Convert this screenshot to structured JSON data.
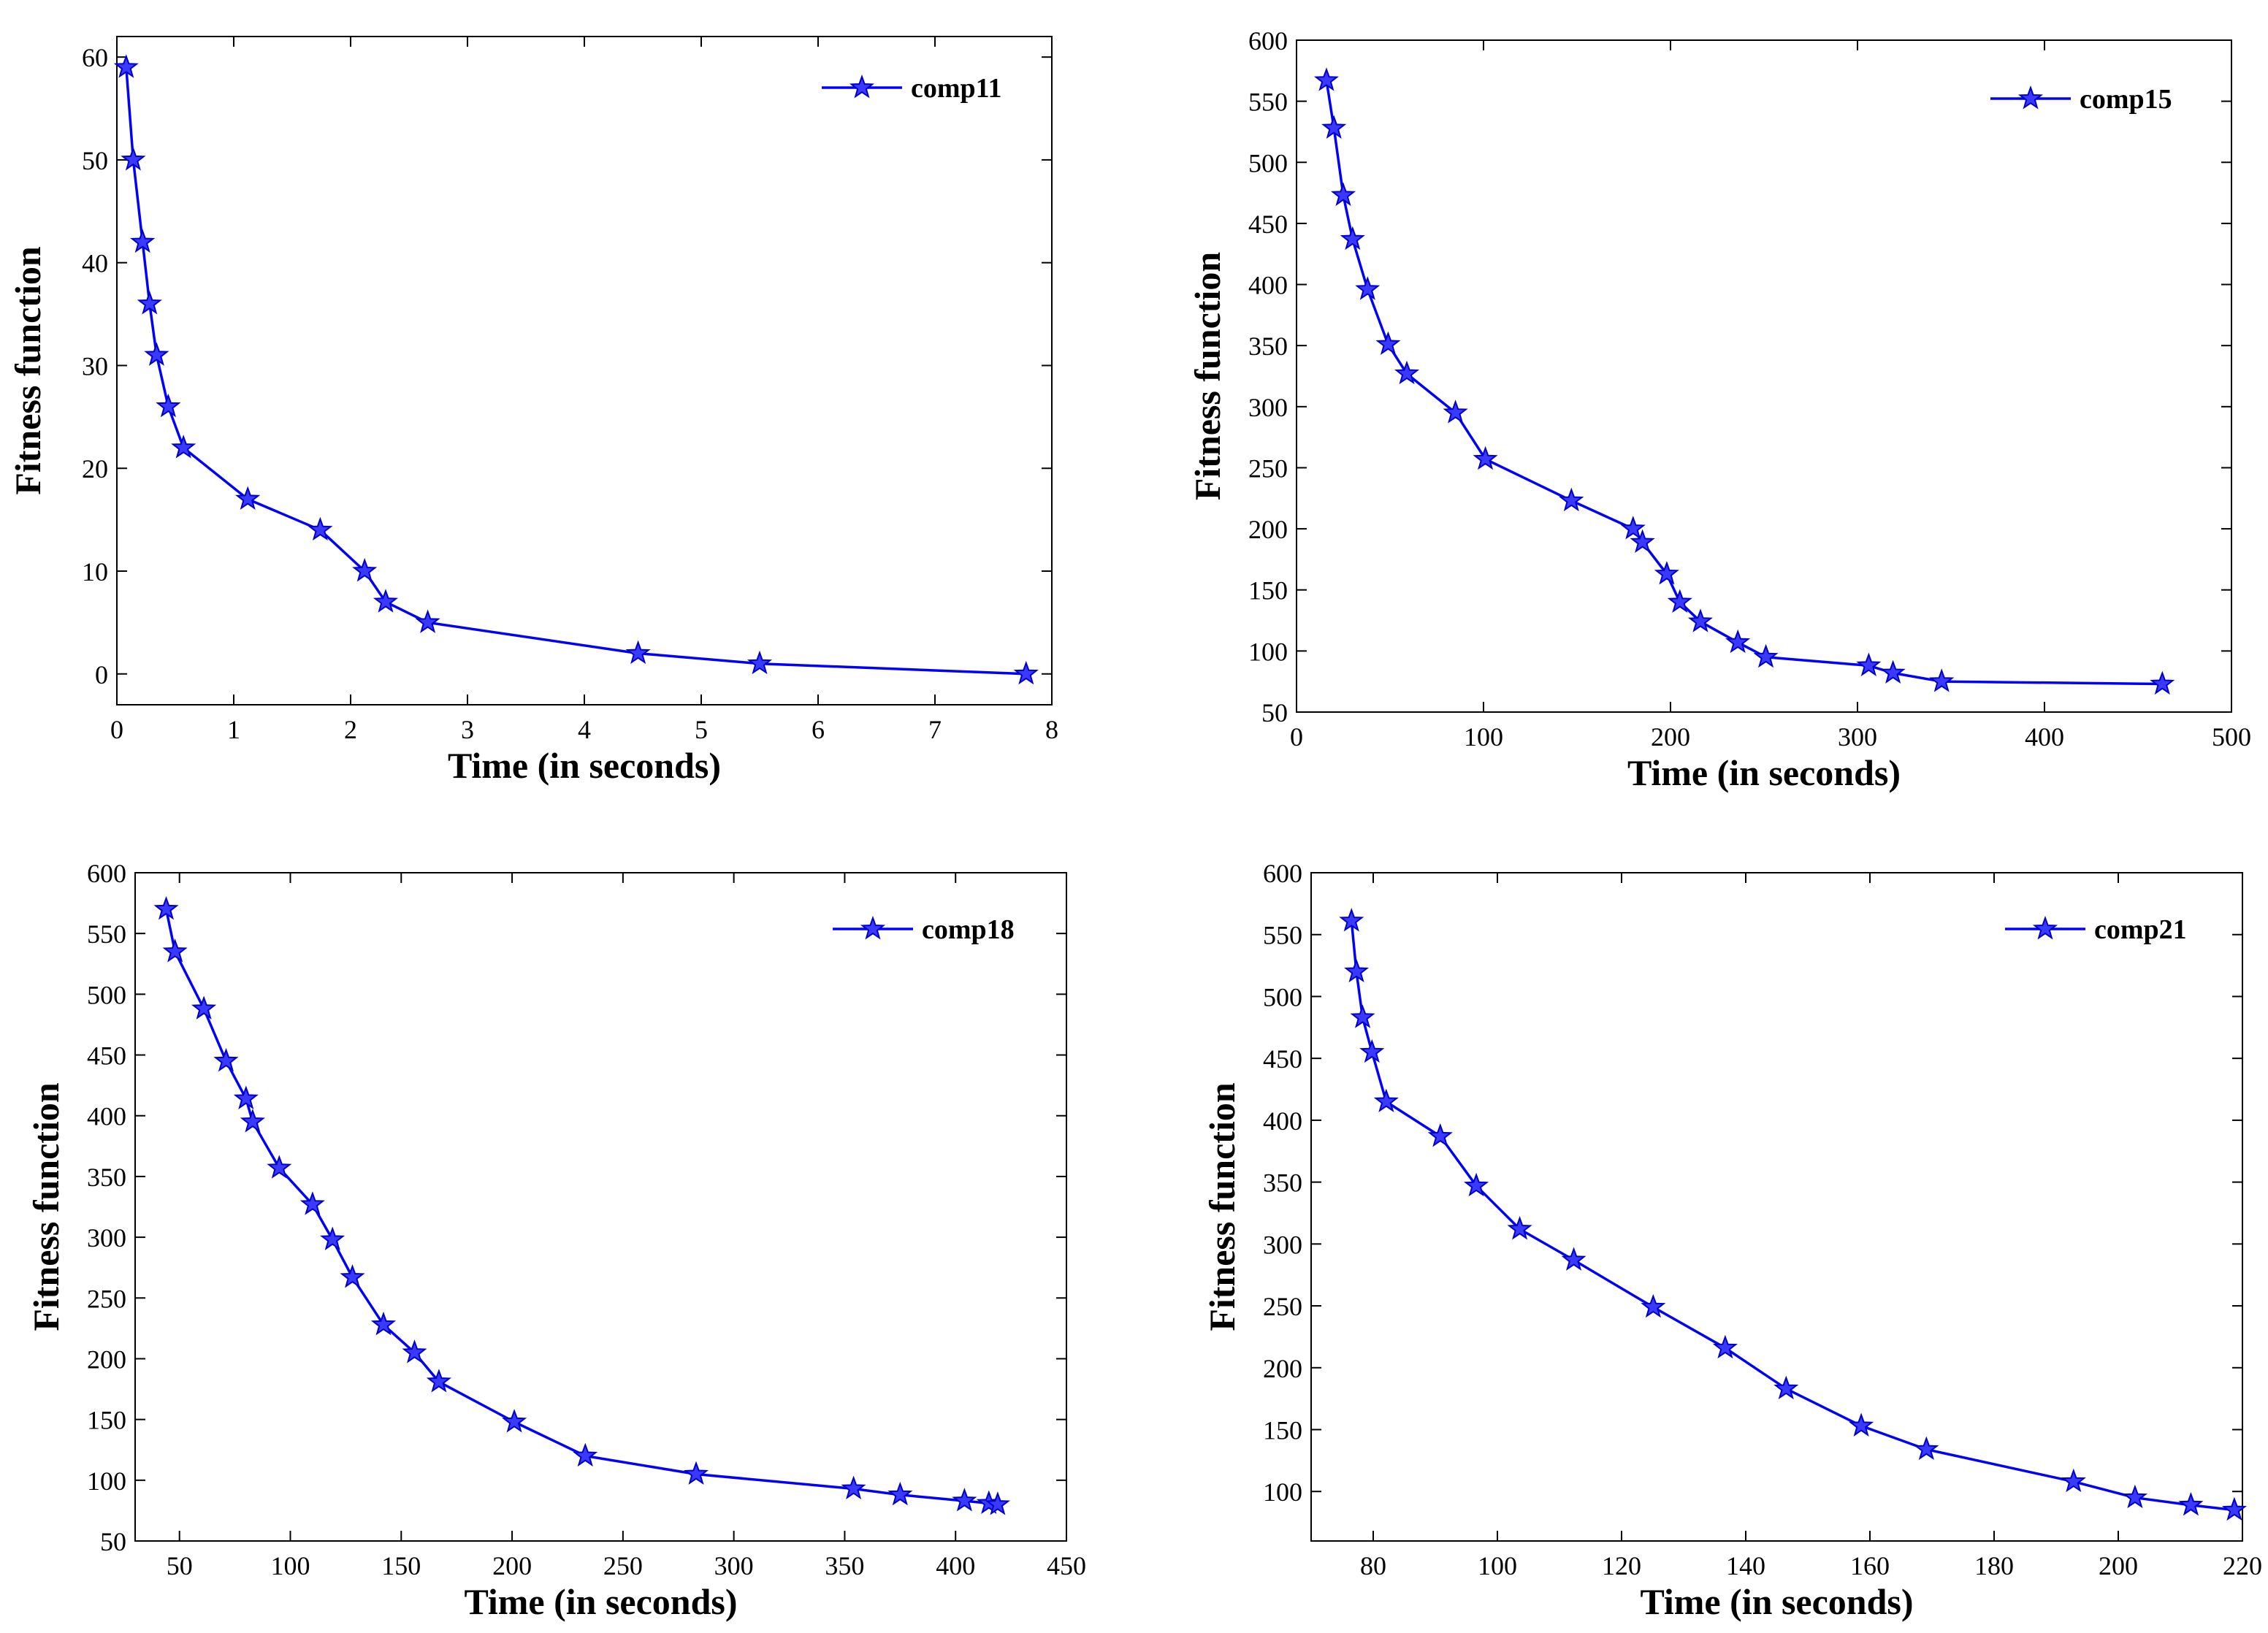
{
  "chart_data": [
    {
      "type": "line",
      "title": "",
      "xlabel": "Time (in seconds)",
      "ylabel": "Fitness function",
      "xlim": [
        0,
        8
      ],
      "ylim": [
        -3,
        62
      ],
      "xticks": [
        0,
        1,
        2,
        3,
        4,
        5,
        6,
        7,
        8
      ],
      "yticks": [
        0,
        10,
        20,
        30,
        40,
        50,
        60
      ],
      "legend_position": "top-right",
      "grid": false,
      "series": [
        {
          "name": "comp11",
          "color": "#0000ff",
          "marker": "star",
          "x": [
            0.08,
            0.14,
            0.22,
            0.28,
            0.34,
            0.44,
            0.57,
            1.12,
            1.74,
            2.12,
            2.3,
            2.66,
            4.46,
            5.5,
            7.78
          ],
          "y": [
            59,
            50,
            42,
            36,
            31,
            26,
            22,
            17,
            14,
            10,
            7,
            5,
            2,
            1,
            0
          ]
        }
      ]
    },
    {
      "type": "line",
      "title": "",
      "xlabel": "Time (in seconds)",
      "ylabel": "Fitness function",
      "xlim": [
        0,
        500
      ],
      "ylim": [
        50,
        600
      ],
      "xticks": [
        0,
        100,
        200,
        300,
        400,
        500
      ],
      "yticks": [
        50,
        100,
        150,
        200,
        250,
        300,
        350,
        400,
        450,
        500,
        550,
        600
      ],
      "legend_position": "top-right",
      "grid": false,
      "series": [
        {
          "name": "comp15",
          "color": "#0000ff",
          "marker": "star",
          "x": [
            16,
            20,
            25,
            30,
            38,
            49,
            59,
            85,
            101,
            147,
            180,
            185,
            198,
            205,
            216,
            236,
            251,
            306,
            319,
            345,
            463
          ],
          "y": [
            567,
            528,
            473,
            437,
            396,
            351,
            327,
            295,
            257,
            223,
            200,
            189,
            163,
            140,
            124,
            107,
            95,
            88,
            82,
            75,
            73
          ]
        }
      ]
    },
    {
      "type": "line",
      "title": "",
      "xlabel": "Time (in seconds)",
      "ylabel": "Fitness function",
      "xlim": [
        30,
        450
      ],
      "ylim": [
        50,
        600
      ],
      "xticks": [
        50,
        100,
        150,
        200,
        250,
        300,
        350,
        400,
        450
      ],
      "yticks": [
        50,
        100,
        150,
        200,
        250,
        300,
        350,
        400,
        450,
        500,
        550,
        600
      ],
      "legend_position": "top-right",
      "grid": false,
      "series": [
        {
          "name": "comp18",
          "color": "#0000ff",
          "marker": "star",
          "x": [
            44,
            48,
            61,
            71,
            80,
            83,
            95,
            110,
            119,
            128,
            142,
            156,
            167,
            201,
            233,
            283,
            354,
            375,
            404,
            415,
            419
          ],
          "y": [
            570,
            535,
            488,
            445,
            414,
            395,
            357,
            327,
            298,
            267,
            228,
            205,
            181,
            148,
            120,
            105,
            93,
            88,
            83,
            81,
            80
          ]
        }
      ]
    },
    {
      "type": "line",
      "title": "",
      "xlabel": "Time (in seconds)",
      "ylabel": "Fitness function",
      "xlim": [
        70,
        220
      ],
      "ylim": [
        60,
        600
      ],
      "xticks": [
        80,
        100,
        120,
        140,
        160,
        180,
        200,
        220
      ],
      "yticks": [
        100,
        150,
        200,
        250,
        300,
        350,
        400,
        450,
        500,
        550,
        600
      ],
      "legend_position": "top-right",
      "grid": false,
      "series": [
        {
          "name": "comp21",
          "color": "#0000ff",
          "marker": "star",
          "x": [
            76.5,
            77.3,
            78.3,
            79.8,
            82.1,
            90.8,
            96.6,
            103.6,
            112.3,
            125.1,
            136.7,
            146.5,
            158.6,
            169.1,
            192.8,
            202.7,
            211.7,
            218.7
          ],
          "y": [
            561,
            520,
            483,
            455,
            415,
            387,
            347,
            312,
            287,
            249,
            216,
            183,
            153,
            134,
            108,
            95,
            89,
            85
          ]
        }
      ]
    }
  ]
}
